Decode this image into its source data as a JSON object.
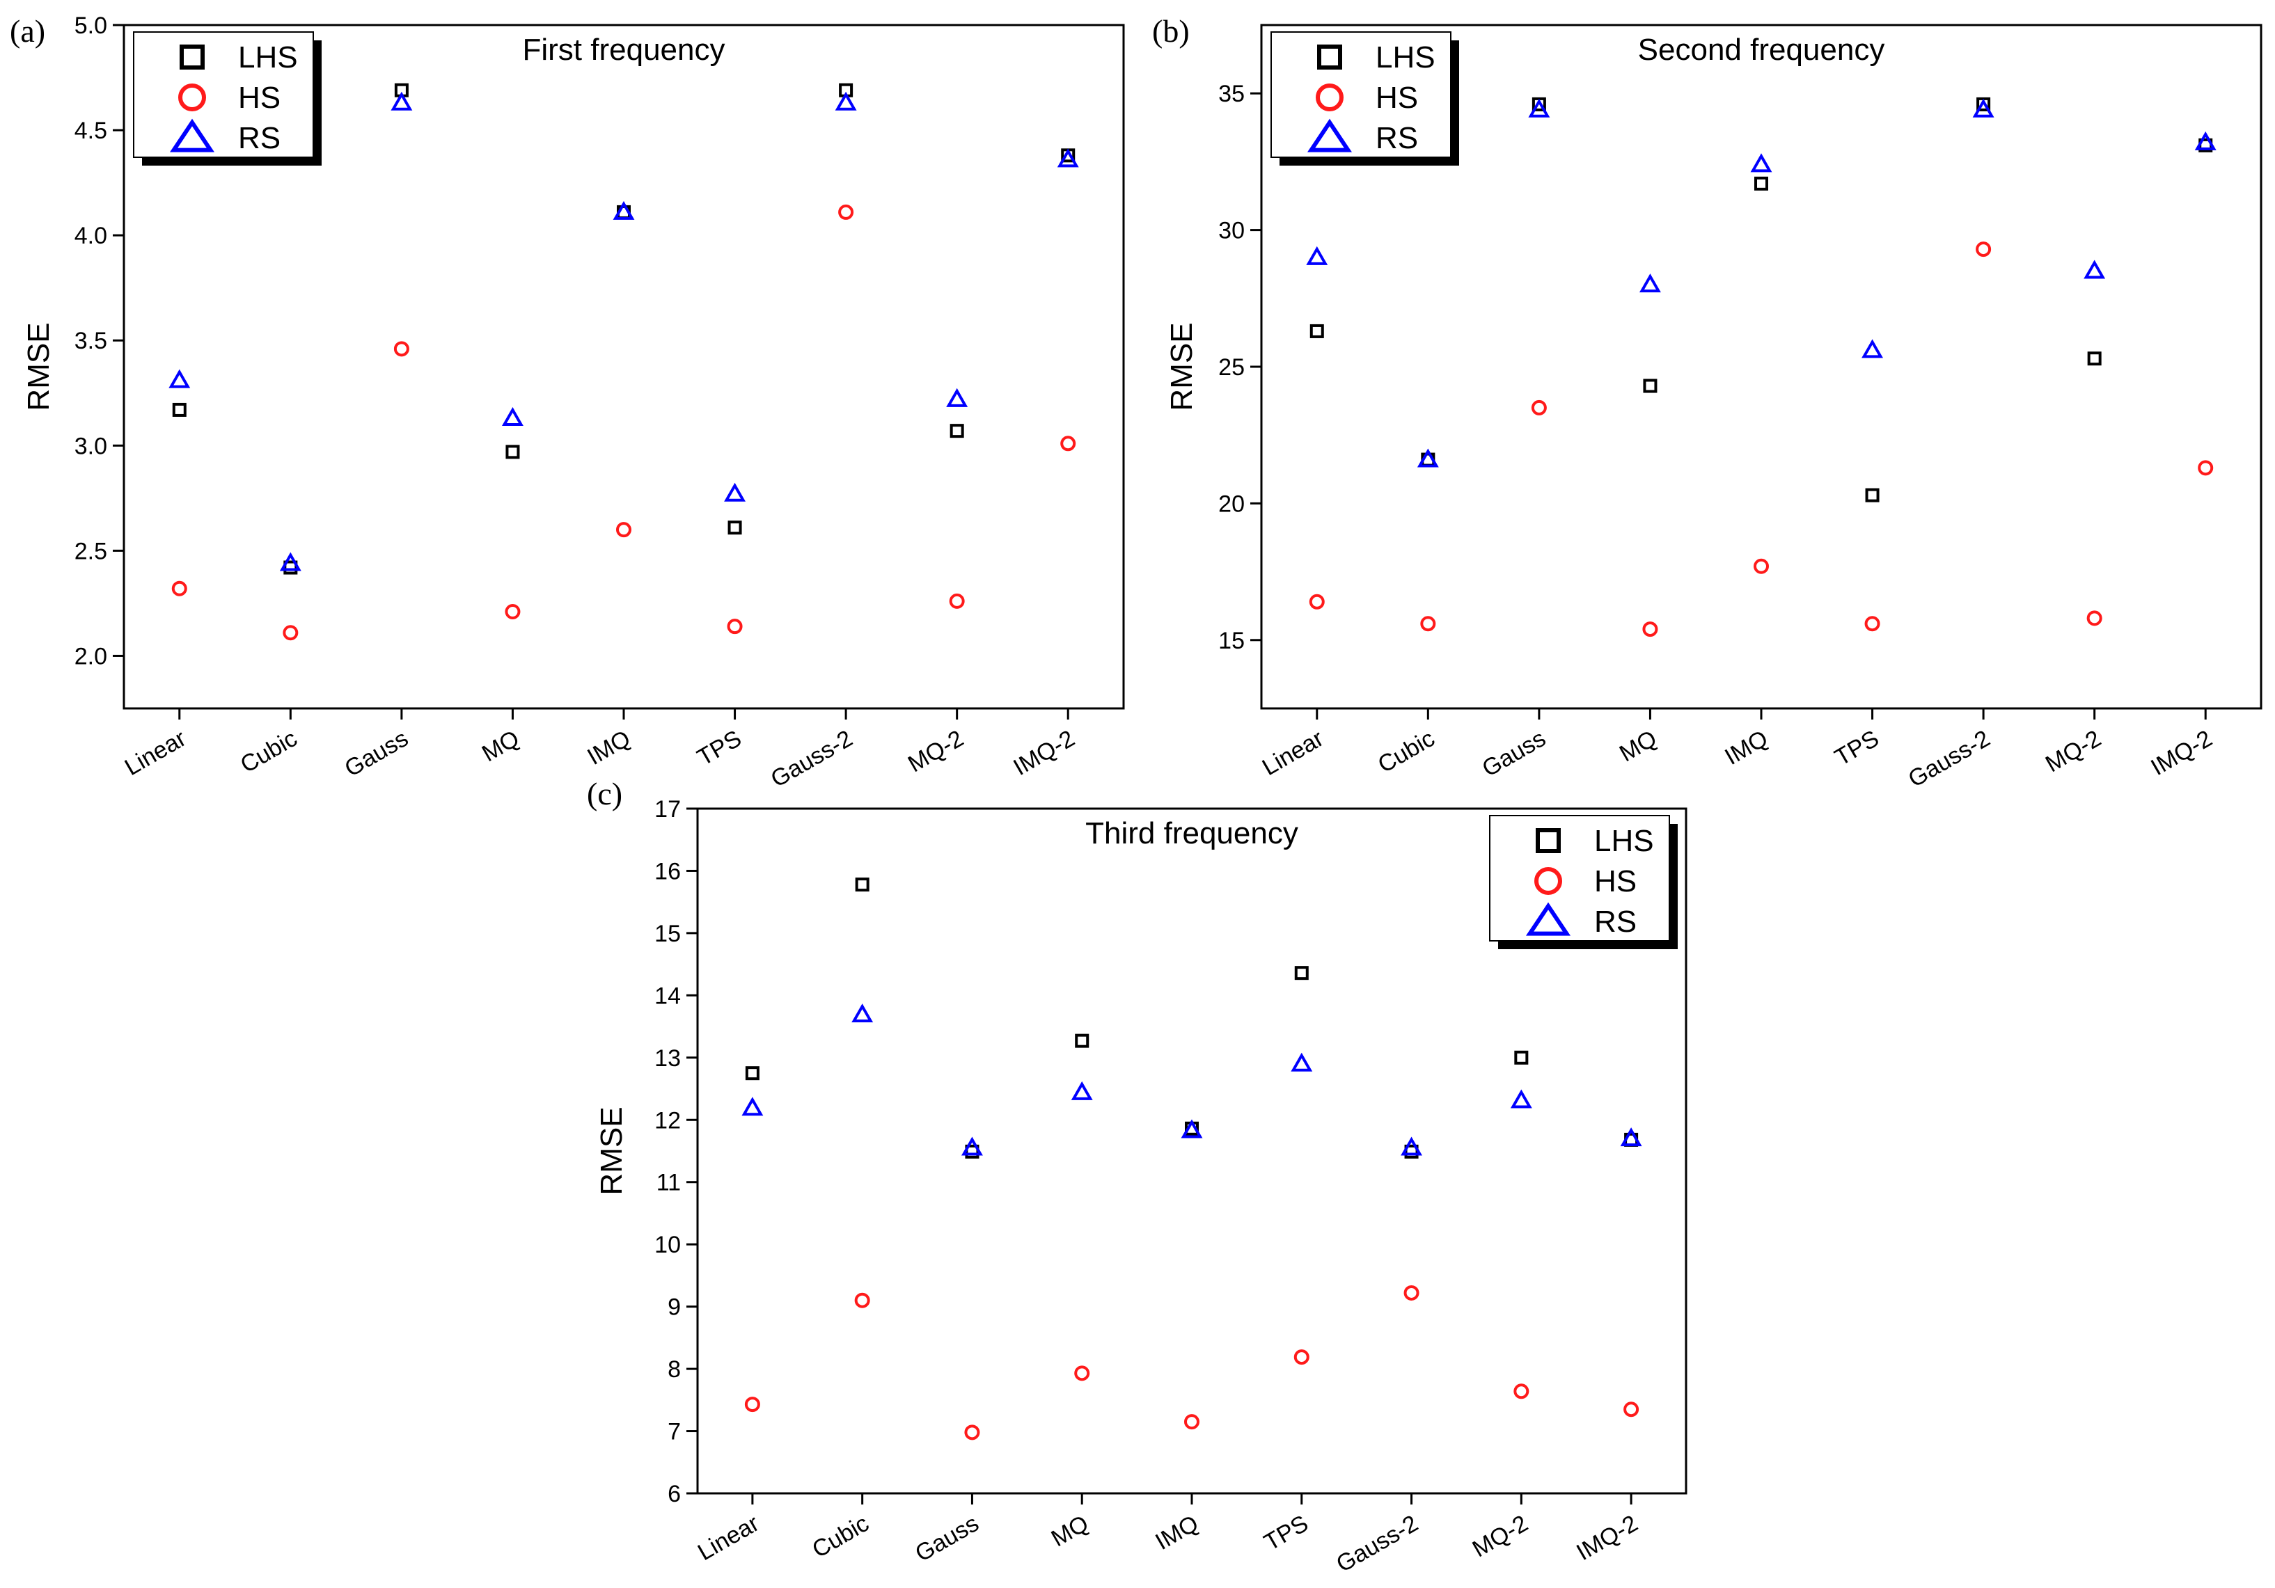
{
  "colors": {
    "LHS": "#000000",
    "HS": "#ff1a1a",
    "RS": "#0000ff"
  },
  "chart_data": [
    {
      "type": "scatter",
      "panel_label": "(a)",
      "title": "First frequency",
      "ylabel": "RMSE",
      "xlabel": "",
      "categories": [
        "Linear",
        "Cubic",
        "Gauss",
        "MQ",
        "IMQ",
        "TPS",
        "Gauss-2",
        "MQ-2",
        "IMQ-2"
      ],
      "ylim": [
        1.75,
        5.0
      ],
      "yticks": [
        2.0,
        2.5,
        3.0,
        3.5,
        4.0,
        4.5,
        5.0
      ],
      "ytick_labels": [
        "2.0",
        "2.5",
        "3.0",
        "3.5",
        "4.0",
        "4.5",
        "5.0"
      ],
      "legend_position": "top-left",
      "series": [
        {
          "name": "LHS",
          "marker": "square",
          "values": [
            3.17,
            2.42,
            4.69,
            2.97,
            4.11,
            2.61,
            4.69,
            3.07,
            4.38
          ]
        },
        {
          "name": "HS",
          "marker": "circle",
          "values": [
            2.32,
            2.11,
            3.46,
            2.21,
            2.6,
            2.14,
            4.11,
            2.26,
            3.01
          ]
        },
        {
          "name": "RS",
          "marker": "triangle",
          "values": [
            3.31,
            2.44,
            4.63,
            3.13,
            4.11,
            2.77,
            4.63,
            3.22,
            4.36
          ]
        }
      ]
    },
    {
      "type": "scatter",
      "panel_label": "(b)",
      "title": "Second frequency",
      "ylabel": "RMSE",
      "xlabel": "",
      "categories": [
        "Linear",
        "Cubic",
        "Gauss",
        "MQ",
        "IMQ",
        "TPS",
        "Gauss-2",
        "MQ-2",
        "IMQ-2"
      ],
      "ylim": [
        12.5,
        37.5
      ],
      "yticks": [
        15,
        20,
        25,
        30,
        35
      ],
      "ytick_labels": [
        "15",
        "20",
        "25",
        "30",
        "35"
      ],
      "legend_position": "top-left",
      "series": [
        {
          "name": "LHS",
          "marker": "square",
          "values": [
            26.3,
            21.6,
            34.6,
            24.3,
            31.7,
            20.3,
            34.6,
            25.3,
            33.1
          ]
        },
        {
          "name": "HS",
          "marker": "circle",
          "values": [
            16.4,
            15.6,
            23.5,
            15.4,
            17.7,
            15.6,
            29.3,
            15.8,
            21.3
          ]
        },
        {
          "name": "RS",
          "marker": "triangle",
          "values": [
            29.0,
            21.6,
            34.4,
            28.0,
            32.4,
            25.6,
            34.4,
            28.5,
            33.2
          ]
        }
      ]
    },
    {
      "type": "scatter",
      "panel_label": "(c)",
      "title": "Third frequency",
      "ylabel": "RMSE",
      "xlabel": "",
      "categories": [
        "Linear",
        "Cubic",
        "Gauss",
        "MQ",
        "IMQ",
        "TPS",
        "Gauss-2",
        "MQ-2",
        "IMQ-2"
      ],
      "ylim": [
        6,
        17
      ],
      "yticks": [
        6,
        7,
        8,
        9,
        10,
        11,
        12,
        13,
        14,
        15,
        16,
        17
      ],
      "ytick_labels": [
        "6",
        "7",
        "8",
        "9",
        "10",
        "11",
        "12",
        "13",
        "14",
        "15",
        "16",
        "17"
      ],
      "legend_position": "top-right",
      "series": [
        {
          "name": "LHS",
          "marker": "square",
          "values": [
            12.75,
            15.78,
            11.49,
            13.27,
            11.86,
            14.36,
            11.49,
            13.0,
            11.68
          ]
        },
        {
          "name": "HS",
          "marker": "circle",
          "values": [
            7.43,
            9.1,
            6.98,
            7.93,
            7.15,
            8.19,
            9.22,
            7.64,
            7.35
          ]
        },
        {
          "name": "RS",
          "marker": "triangle",
          "values": [
            12.19,
            13.69,
            11.55,
            12.44,
            11.83,
            12.9,
            11.55,
            12.31,
            11.7
          ]
        }
      ]
    }
  ]
}
